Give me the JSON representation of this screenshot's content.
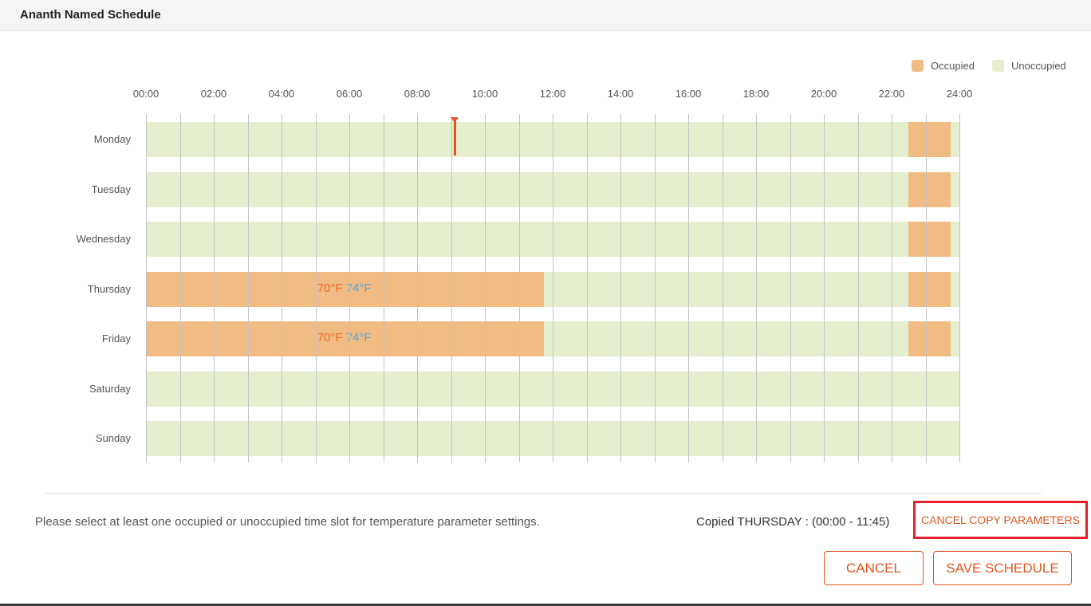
{
  "header": {
    "title": "Ananth Named Schedule"
  },
  "legend": {
    "occupied": {
      "label": "Occupied",
      "color": "#f1bb84"
    },
    "unoccupied": {
      "label": "Unoccupied",
      "color": "#e5efcf"
    }
  },
  "hours": [
    "00:00",
    "02:00",
    "04:00",
    "06:00",
    "08:00",
    "10:00",
    "12:00",
    "14:00",
    "16:00",
    "18:00",
    "20:00",
    "22:00",
    "24:00"
  ],
  "current_time_hour": 9.1,
  "days": [
    {
      "name": "Monday",
      "occupied": [
        {
          "start": 22.5,
          "end": 23.75
        }
      ]
    },
    {
      "name": "Tuesday",
      "occupied": [
        {
          "start": 22.5,
          "end": 23.75
        }
      ]
    },
    {
      "name": "Wednesday",
      "occupied": [
        {
          "start": 22.5,
          "end": 23.75
        }
      ]
    },
    {
      "name": "Thursday",
      "occupied": [
        {
          "start": 0,
          "end": 11.75,
          "heat": "70°F",
          "cool": "74°F"
        },
        {
          "start": 22.5,
          "end": 23.75
        }
      ]
    },
    {
      "name": "Friday",
      "occupied": [
        {
          "start": 0,
          "end": 11.75,
          "heat": "70°F",
          "cool": "74°F"
        },
        {
          "start": 22.5,
          "end": 23.75
        }
      ]
    },
    {
      "name": "Saturday",
      "occupied": []
    },
    {
      "name": "Sunday",
      "occupied": []
    }
  ],
  "footer": {
    "hint": "Please select at least one occupied or unoccupied time slot for temperature parameter settings.",
    "copied": "Copied THURSDAY : (00:00 - 11:45)",
    "cancel_copy_label": "CANCEL COPY PARAMETERS",
    "cancel_label": "CANCEL",
    "save_label": "SAVE SCHEDULE"
  }
}
